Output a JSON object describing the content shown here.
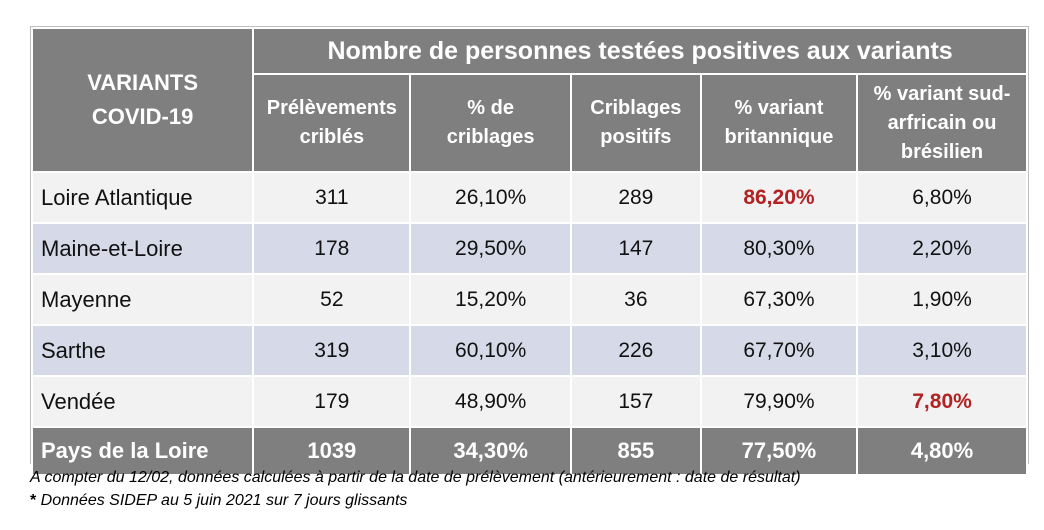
{
  "table": {
    "corner_header": [
      "VARIANTS",
      "COVID-19"
    ],
    "group_header": "Nombre de personnes testées positives aux variants",
    "columns": [
      [
        "Prélèvements",
        "criblés"
      ],
      [
        "% de",
        "criblages"
      ],
      [
        "Criblages",
        "positifs"
      ],
      [
        "% variant",
        "britannique"
      ],
      [
        "% variant sud-",
        "arfricain ou",
        "brésilien"
      ]
    ],
    "rows": [
      {
        "region": "Loire Atlantique",
        "values": [
          "311",
          "26,10%",
          "289",
          "86,20%",
          "6,80%"
        ],
        "highlight": [
          3
        ]
      },
      {
        "region": "Maine-et-Loire",
        "values": [
          "178",
          "29,50%",
          "147",
          "80,30%",
          "2,20%"
        ],
        "highlight": []
      },
      {
        "region": "Mayenne",
        "values": [
          "52",
          "15,20%",
          "36",
          "67,30%",
          "1,90%"
        ],
        "highlight": []
      },
      {
        "region": "Sarthe",
        "values": [
          "319",
          "60,10%",
          "226",
          "67,70%",
          "3,10%"
        ],
        "highlight": []
      },
      {
        "region": "Vendée",
        "values": [
          "179",
          "48,90%",
          "157",
          "79,90%",
          "7,80%"
        ],
        "highlight": [
          4
        ]
      }
    ],
    "total": {
      "region": "Pays de la Loire",
      "values": [
        "1039",
        "34,30%",
        "855",
        "77,50%",
        "4,80%"
      ]
    }
  },
  "notes": {
    "line1": "A compter du 12/02, données calculées à partir de la date de prélèvement (antérieurement : date de résultat)",
    "line2_star": "*",
    "line2": " Données SIDEP au 5 juin 2021 sur 7 jours glissants"
  },
  "colors": {
    "header_gray": "#7f7f7f",
    "row_light": "#f2f2f2",
    "row_blue": "#d6dae8",
    "highlight_red": "#b22222"
  }
}
